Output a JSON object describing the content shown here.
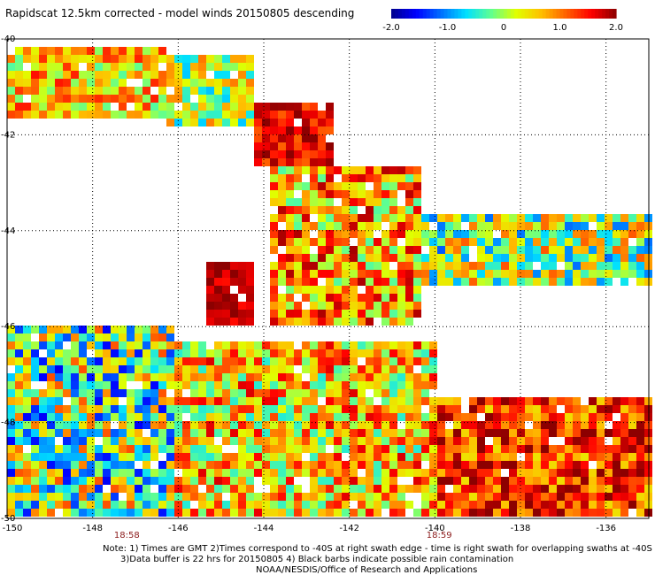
{
  "title": "Rapidscat 12.5km corrected - model winds 20150805 descending",
  "colorbar": {
    "min": -2.0,
    "max": 2.0,
    "tick_labels": [
      "-2.0",
      "-1.0",
      "0",
      "1.0",
      "2.0"
    ],
    "tick_values": [
      -2.0,
      -1.0,
      0,
      1.0,
      2.0
    ],
    "colors": [
      "#00008c",
      "#0000ff",
      "#0070ff",
      "#00e0ff",
      "#60ff90",
      "#e0ff00",
      "#ffc000",
      "#ff6000",
      "#ff0000",
      "#8c0000"
    ]
  },
  "chart_data": {
    "type": "heatmap",
    "title": "Rapidscat 12.5km corrected - model winds 20150805 descending",
    "xlabel": "",
    "ylabel": "",
    "xlim": [
      -150,
      -135
    ],
    "ylim": [
      -50,
      -40
    ],
    "x_tick_values": [
      -150,
      -148,
      -146,
      -144,
      -142,
      -140,
      -138,
      -136
    ],
    "x_tick_labels": [
      "-150",
      "-148",
      "-146",
      "-144",
      "-142",
      "-140",
      "-138",
      "-136"
    ],
    "y_tick_values": [
      -40,
      -42,
      -44,
      -46,
      -48,
      -50
    ],
    "y_tick_labels": [
      "-40",
      "-42",
      "-44",
      "-46",
      "-48",
      "-50"
    ],
    "grid": true,
    "grid_style": "dotted",
    "time_labels": [
      {
        "text": "18:58",
        "lon": -147.2
      },
      {
        "text": "18:59",
        "lon": -139.9
      }
    ],
    "regions": [
      {
        "name": "northwest-strip-west",
        "lon": [
          -150,
          -146.3
        ],
        "lat": [
          -41.6,
          -40.1
        ],
        "value": 0.6,
        "spread": 0.9
      },
      {
        "name": "northwest-strip-tail",
        "lon": [
          -146.3,
          -144.3
        ],
        "lat": [
          -41.8,
          -40.3
        ],
        "value": 0.1,
        "spread": 0.9
      },
      {
        "name": "northwest-strip-red",
        "lon": [
          -144.3,
          -142.4
        ],
        "lat": [
          -42.7,
          -41.3
        ],
        "value": 1.6,
        "spread": 0.5
      },
      {
        "name": "central-block",
        "lon": [
          -143.9,
          -140.4
        ],
        "lat": [
          -45.9,
          -42.7
        ],
        "value": 0.8,
        "spread": 1.1
      },
      {
        "name": "central-red-core",
        "lon": [
          -145.3,
          -144.3
        ],
        "lat": [
          -46.0,
          -44.7
        ],
        "value": 1.8,
        "spread": 0.3
      },
      {
        "name": "central-east-tail",
        "lon": [
          -140.4,
          -135.0
        ],
        "lat": [
          -45.2,
          -43.7
        ],
        "value": 0.0,
        "spread": 1.2
      },
      {
        "name": "south-west",
        "lon": [
          -150,
          -146.0
        ],
        "lat": [
          -50.0,
          -46.0
        ],
        "value": -0.2,
        "spread": 1.4
      },
      {
        "name": "south-central",
        "lon": [
          -146.0,
          -140.0
        ],
        "lat": [
          -50.0,
          -46.3
        ],
        "value": 0.6,
        "spread": 1.1
      },
      {
        "name": "south-east",
        "lon": [
          -140.0,
          -135.0
        ],
        "lat": [
          -50.0,
          -47.4
        ],
        "value": 1.3,
        "spread": 0.9
      }
    ]
  },
  "notes": [
    "Note: 1) Times are GMT 2)Times correspond to -40S at right swath edge - time is right swath for overlapping swaths at -40S",
    "3)Data buffer is 22 hrs for 20150805 4) Black barbs indicate possible rain contamination",
    "NOAA/NESDIS/Office of Research and Applications"
  ]
}
